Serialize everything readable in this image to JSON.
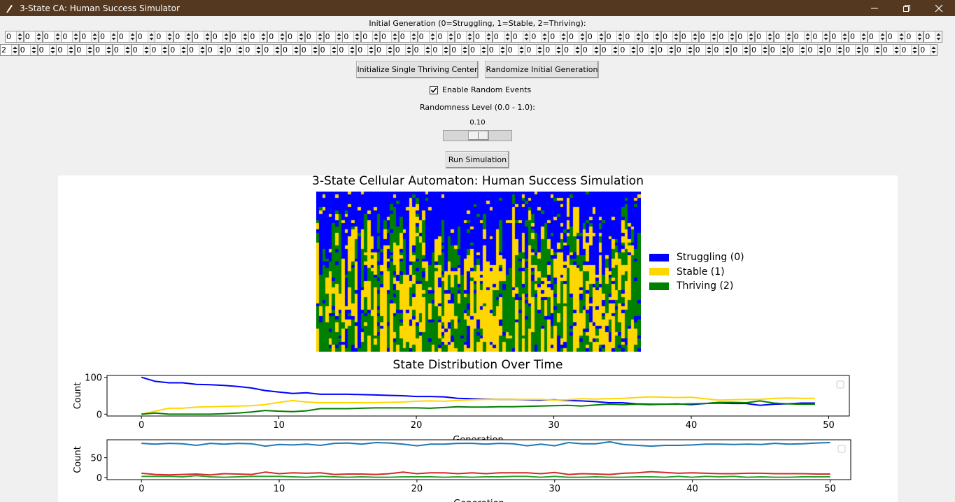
{
  "window": {
    "title": "3-State CA: Human Success Simulator",
    "minimize_icon": "minimize-icon",
    "restore_icon": "restore-icon",
    "close_icon": "close-icon"
  },
  "initial_generation": {
    "label": "Initial Generation (0=Struggling, 1=Stable, 2=Thriving):",
    "row1_values": [
      "0",
      "0",
      "0",
      "0",
      "0",
      "0",
      "0",
      "0",
      "0",
      "0",
      "0",
      "0",
      "0",
      "0",
      "0",
      "0",
      "0",
      "0",
      "0",
      "0",
      "0",
      "0",
      "0",
      "0",
      "0",
      "0",
      "0",
      "0",
      "0",
      "0",
      "0",
      "0",
      "0",
      "0",
      "0",
      "0",
      "0",
      "0",
      "0",
      "0",
      "0",
      "0",
      "0",
      "0",
      "0",
      "0",
      "0",
      "0",
      "0",
      "0",
      "0"
    ],
    "row2_values": [
      "2",
      "0",
      "0",
      "0",
      "0",
      "0",
      "0",
      "0",
      "0",
      "0",
      "0",
      "0",
      "0",
      "0",
      "0",
      "0",
      "0",
      "0",
      "0",
      "0",
      "0",
      "0",
      "0",
      "0",
      "0",
      "0",
      "0",
      "0",
      "0",
      "0",
      "0",
      "0",
      "0",
      "0",
      "0",
      "0",
      "0",
      "0",
      "0",
      "0",
      "0",
      "0",
      "0",
      "0",
      "0",
      "0",
      "0",
      "0",
      "0",
      "0",
      "0"
    ]
  },
  "buttons": {
    "init_single": "Initialize Single Thriving Center",
    "randomize": "Randomize Initial Generation",
    "run": "Run Simulation"
  },
  "random_events": {
    "label": "Enable Random Events",
    "checked": true
  },
  "randomness": {
    "label": "Randomness Level (0.0 - 1.0):",
    "value_text": "0.10",
    "value": 0.1
  },
  "colors": {
    "struggling": "#0000ff",
    "stable": "#ffd700",
    "thriving": "#008000"
  },
  "figure": {
    "ca_title": "3-State Cellular Automaton: Human Success Simulation",
    "legend": [
      "Struggling (0)",
      "Stable (1)",
      "Thriving (2)"
    ],
    "dist_title": "State Distribution Over Time"
  },
  "chart_data": [
    {
      "type": "line",
      "title": "State Distribution Over Time",
      "xlabel": "Generation",
      "ylabel": "Count",
      "x_ticks": [
        0,
        10,
        20,
        30,
        40,
        50
      ],
      "y_ticks": [
        0,
        100
      ],
      "xlim": [
        -2.5,
        51.5
      ],
      "ylim": [
        -5,
        105
      ],
      "colors": [
        "#0000ff",
        "#ffd700",
        "#008000"
      ],
      "series": [
        {
          "values": [
            100,
            89,
            85,
            85,
            81,
            80,
            78,
            75,
            71,
            64,
            60,
            56,
            58,
            54,
            54,
            54,
            53,
            52,
            51,
            50,
            48,
            48,
            47,
            43,
            42,
            41,
            40,
            40,
            39,
            38,
            39,
            37,
            36,
            34,
            31,
            31,
            28,
            27,
            27,
            28,
            26,
            29,
            30,
            29,
            29,
            24,
            27,
            28,
            30,
            30
          ]
        },
        {
          "values": [
            0,
            8,
            16,
            16,
            19,
            20,
            21,
            22,
            23,
            26,
            32,
            37,
            33,
            31,
            31,
            31,
            31,
            31,
            32,
            33,
            35,
            36,
            35,
            37,
            39,
            40,
            40,
            40,
            40,
            40,
            38,
            39,
            42,
            41,
            42,
            43,
            45,
            47,
            46,
            45,
            46,
            42,
            38,
            39,
            40,
            40,
            43,
            44,
            43,
            43
          ]
        },
        {
          "values": [
            0,
            3,
            0,
            0,
            0,
            0,
            1,
            3,
            6,
            10,
            8,
            7,
            9,
            15,
            15,
            15,
            16,
            17,
            17,
            17,
            17,
            16,
            18,
            20,
            19,
            19,
            20,
            20,
            21,
            22,
            23,
            24,
            22,
            25,
            27,
            26,
            27,
            26,
            27,
            27,
            28,
            29,
            32,
            32,
            31,
            36,
            30,
            28,
            27,
            27
          ]
        }
      ]
    },
    {
      "type": "line",
      "xlabel": "Generation",
      "ylabel": "Count",
      "x_ticks": [
        0,
        10,
        20,
        30,
        40,
        50
      ],
      "y_ticks": [
        0,
        50
      ],
      "xlim": [
        -2.5,
        51.5
      ],
      "ylim": [
        -5,
        95
      ],
      "colors": [
        "#1f77b4",
        "#d62728",
        "#2ca02c"
      ],
      "series": [
        {
          "values": [
            86,
            84,
            86,
            85,
            81,
            86,
            84,
            86,
            85,
            79,
            83,
            82,
            84,
            81,
            86,
            87,
            84,
            88,
            87,
            84,
            80,
            84,
            84,
            86,
            86,
            84,
            86,
            85,
            80,
            84,
            80,
            88,
            85,
            85,
            90,
            83,
            81,
            79,
            81,
            81,
            82,
            84,
            84,
            83,
            84,
            83,
            86,
            84,
            85,
            87,
            88
          ]
        },
        {
          "values": [
            11,
            8,
            7,
            8,
            9,
            7,
            10,
            9,
            8,
            14,
            10,
            12,
            11,
            12,
            8,
            9,
            9,
            8,
            10,
            14,
            10,
            12,
            12,
            10,
            12,
            10,
            12,
            12,
            12,
            10,
            13,
            8,
            10,
            9,
            8,
            11,
            12,
            15,
            13,
            11,
            12,
            11,
            10,
            10,
            11,
            11,
            10,
            10,
            10,
            9,
            9
          ]
        },
        {
          "values": [
            3,
            3,
            3,
            2,
            5,
            2,
            1,
            2,
            3,
            3,
            3,
            2,
            1,
            3,
            2,
            1,
            2,
            1,
            1,
            2,
            2,
            2,
            1,
            2,
            1,
            2,
            2,
            3,
            3,
            1,
            3,
            1,
            1,
            2,
            1,
            1,
            2,
            2,
            1,
            3,
            1,
            3,
            2,
            3,
            1,
            2,
            1,
            1,
            2,
            2,
            2
          ]
        }
      ]
    }
  ]
}
